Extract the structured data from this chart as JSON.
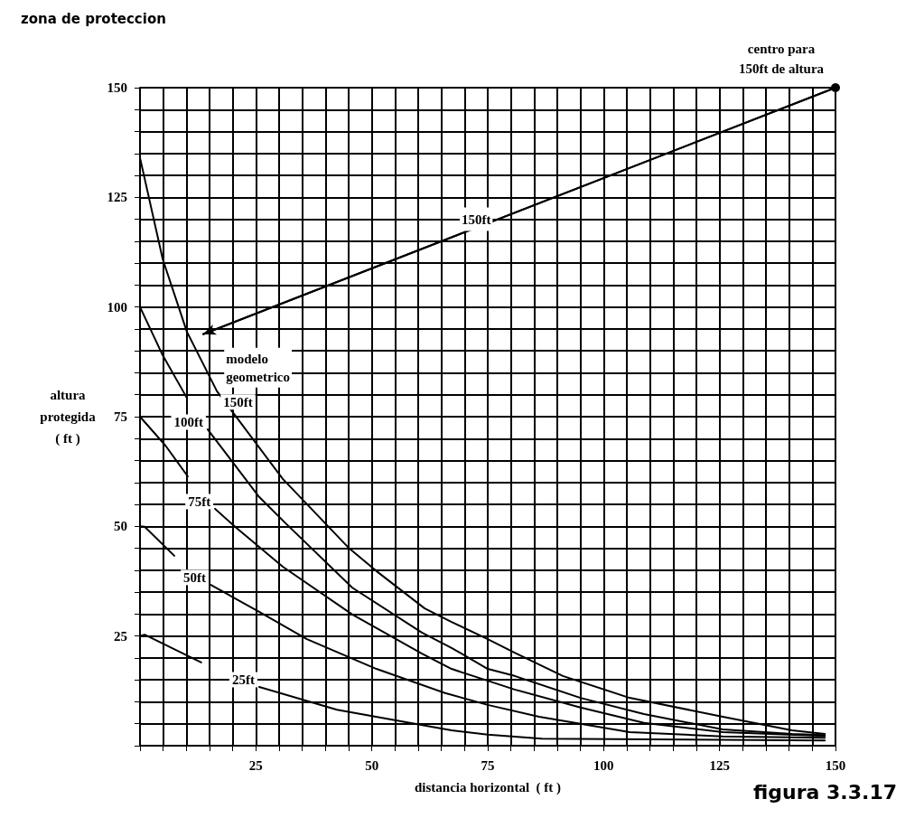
{
  "chart_data": {
    "type": "line",
    "title": "zona de proteccion",
    "xlabel": "distancia horizontal  ( ft )",
    "ylabel": "altura\nprotegida\n( ft )",
    "xlim": [
      0,
      150
    ],
    "ylim": [
      0,
      150
    ],
    "xticks": [
      {
        "value": 0,
        "label": null
      },
      {
        "value": 5,
        "label": null
      },
      {
        "value": 10,
        "label": null
      },
      {
        "value": 15,
        "label": null
      },
      {
        "value": 20,
        "label": null
      },
      25,
      {
        "value": 30,
        "label": null
      },
      {
        "value": 35,
        "label": null
      },
      {
        "value": 40,
        "label": null
      },
      {
        "value": 45,
        "label": null
      },
      50,
      {
        "value": 55,
        "label": null
      },
      {
        "value": 60,
        "label": null
      },
      {
        "value": 65,
        "label": null
      },
      {
        "value": 70,
        "label": null
      },
      75,
      {
        "value": 80,
        "label": null
      },
      {
        "value": 85,
        "label": null
      },
      {
        "value": 90,
        "label": null
      },
      {
        "value": 95,
        "label": null
      },
      100,
      {
        "value": 105,
        "label": null
      },
      {
        "value": 110,
        "label": null
      },
      {
        "value": 115,
        "label": null
      },
      {
        "value": 120,
        "label": null
      },
      125,
      {
        "value": 130,
        "label": null
      },
      {
        "value": 135,
        "label": null
      },
      {
        "value": 140,
        "label": null
      },
      {
        "value": 145,
        "label": null
      },
      150
    ],
    "yticks": [
      {
        "value": 0,
        "label": null
      },
      {
        "value": 5,
        "label": null
      },
      {
        "value": 10,
        "label": null
      },
      {
        "value": 15,
        "label": null
      },
      {
        "value": 20,
        "label": null
      },
      25,
      {
        "value": 30,
        "label": null
      },
      {
        "value": 35,
        "label": null
      },
      {
        "value": 40,
        "label": null
      },
      {
        "value": 45,
        "label": null
      },
      50,
      {
        "value": 55,
        "label": null
      },
      {
        "value": 60,
        "label": null
      },
      {
        "value": 65,
        "label": null
      },
      {
        "value": 70,
        "label": null
      },
      75,
      {
        "value": 80,
        "label": null
      },
      {
        "value": 85,
        "label": null
      },
      {
        "value": 90,
        "label": null
      },
      {
        "value": 95,
        "label": null
      },
      100,
      {
        "value": 105,
        "label": null
      },
      {
        "value": 110,
        "label": null
      },
      {
        "value": 115,
        "label": null
      },
      {
        "value": 120,
        "label": null
      },
      125,
      {
        "value": 130,
        "label": null
      },
      {
        "value": 135,
        "label": null
      },
      {
        "value": 140,
        "label": null
      },
      {
        "value": 145,
        "label": null
      },
      150
    ],
    "grid": true,
    "legend": false,
    "marker": "none",
    "line_style": "solid",
    "series": [
      {
        "name": "150ft",
        "color": "#000000",
        "x": [
          0,
          4.9,
          10.1,
          16.6,
          21,
          30.8,
          45.2,
          51,
          61.4,
          67.2,
          75,
          80.8,
          91.2,
          105.6,
          125.7,
          140.6,
          147.7
        ],
        "values": [
          134,
          110.9,
          94.4,
          80.8,
          74.6,
          60.8,
          44.9,
          39.8,
          31.3,
          28.2,
          24.3,
          21.2,
          15.9,
          10.9,
          6.6,
          3.5,
          2.7
        ]
      },
      {
        "name": "100ft",
        "color": "#000000",
        "x": [
          0,
          4.9,
          10.1,
          12.3,
          14.6,
          25.7,
          31.6,
          45.8,
          60.8,
          67.2,
          75,
          80.8,
          95,
          108.7,
          125.7,
          140.6,
          147.7
        ],
        "values": [
          100,
          89,
          79.3,
          null,
          72.1,
          56.7,
          50.5,
          36,
          25.8,
          22.3,
          17.5,
          15.9,
          10.9,
          7.2,
          3.7,
          2.7,
          2.4
        ]
      },
      {
        "name": "75ft",
        "color": "#000000",
        "x": [
          0,
          5.5,
          10.3,
          13,
          16.2,
          20.5,
          30.8,
          45.8,
          60.8,
          67.2,
          75,
          80.8,
          95,
          108.7,
          125.7,
          147.7
        ],
        "values": [
          75,
          68.4,
          61.4,
          null,
          54,
          49.9,
          40.8,
          29.9,
          21,
          17.5,
          14.8,
          12.8,
          8.7,
          5.2,
          3.1,
          2.2
        ]
      },
      {
        "name": "50ft",
        "color": "#000000",
        "x": [
          0,
          1,
          7.4,
          11,
          15.2,
          25.7,
          36,
          51,
          65.8,
          75,
          86.1,
          105.6,
          125.7,
          147.7
        ],
        "values": [
          50,
          49.9,
          43.3,
          null,
          36.7,
          30.5,
          24.3,
          17.5,
          12,
          9.3,
          6.6,
          3.1,
          2.1,
          1.8
        ]
      },
      {
        "name": "25ft",
        "color": "#000000",
        "x": [
          0,
          1,
          13.2,
          20,
          25.7,
          42.5,
          62,
          67.2,
          75,
          86.7,
          147.7
        ],
        "values": [
          25,
          25.3,
          19,
          null,
          13.4,
          8.2,
          4.5,
          3.5,
          2.5,
          1.6,
          1.2
        ]
      },
      {
        "color": "#000000",
        "marker": "circle",
        "x": [
          13.6,
          150
        ],
        "values": [
          93.8,
          150
        ]
      }
    ],
    "annotations": [
      {
        "text": "150ft",
        "x": 72.5,
        "y": 120
      },
      "modelo\ngeometrico",
      {
        "text": "centro para\n150ft de altura",
        "x": 150,
        "y": 150
      },
      "figura 3.3.17"
    ]
  }
}
